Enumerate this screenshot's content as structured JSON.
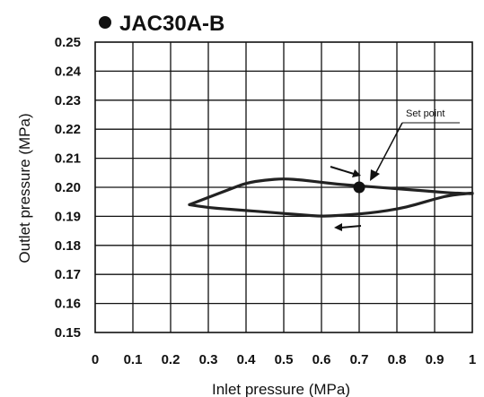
{
  "chart_data": {
    "type": "line",
    "title": "JAC30A-B",
    "xlabel": "Inlet pressure (MPa)",
    "ylabel": "Outlet pressure (MPa)",
    "xlim": [
      0,
      1
    ],
    "ylim": [
      0.15,
      0.25
    ],
    "x_ticks": [
      "0",
      "0.1",
      "0.2",
      "0.3",
      "0.4",
      "0.5",
      "0.6",
      "0.7",
      "0.8",
      "0.9",
      "1"
    ],
    "y_ticks": [
      "0.25",
      "0.24",
      "0.23",
      "0.22",
      "0.21",
      "0.20",
      "0.19",
      "0.18",
      "0.17",
      "0.16",
      "0.15"
    ],
    "grid": true,
    "series": [
      {
        "x": [
          0.25,
          0.3,
          0.35,
          0.4,
          0.45,
          0.5,
          0.55,
          0.6,
          0.65,
          0.7,
          0.75,
          0.8,
          0.85,
          0.9,
          0.95,
          1.0
        ],
        "y": [
          0.194,
          0.1965,
          0.199,
          0.2015,
          0.2025,
          0.203,
          0.2025,
          0.2017,
          0.201,
          0.2005,
          0.2,
          0.1995,
          0.199,
          0.1985,
          0.198,
          0.1978
        ]
      },
      {
        "x": [
          1.0,
          0.95,
          0.9,
          0.85,
          0.8,
          0.75,
          0.7,
          0.65,
          0.6,
          0.55,
          0.5,
          0.45,
          0.4,
          0.35,
          0.3,
          0.25
        ],
        "y": [
          0.198,
          0.1975,
          0.196,
          0.194,
          0.1925,
          0.1915,
          0.1908,
          0.1903,
          0.19,
          0.1905,
          0.191,
          0.1915,
          0.192,
          0.1925,
          0.193,
          0.194
        ]
      }
    ],
    "set_point": {
      "x": 0.7,
      "y": 0.2,
      "label": "Set point"
    },
    "colors": {
      "line": "#222222",
      "grid": "#111111",
      "background": "#ffffff"
    }
  }
}
